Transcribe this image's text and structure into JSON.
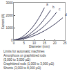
{
  "chart_data": {
    "type": "line",
    "x_label": "Diameter (mm)",
    "y_label": "Current (A)",
    "x": [
      0,
      3,
      6,
      9,
      12,
      15,
      18,
      21,
      24
    ],
    "series": [
      {
        "name": "a",
        "color": "#3a3a5a",
        "values": [
          0,
          150,
          500,
          1000,
          1700,
          2600,
          null,
          null,
          null
        ]
      },
      {
        "name": "b",
        "color": "#3a3a5a",
        "values": [
          0,
          100,
          300,
          650,
          1100,
          1700,
          2400,
          null,
          null
        ]
      },
      {
        "name": "c",
        "color": "#3a3a5a",
        "values": [
          0,
          80,
          220,
          450,
          750,
          1150,
          1650,
          2250,
          null
        ]
      },
      {
        "name": "d",
        "color": "#3a3a5a",
        "values": [
          0,
          50,
          150,
          300,
          500,
          750,
          1050,
          1400,
          1800
        ]
      }
    ],
    "xlim": [
      0,
      25
    ],
    "xticks": [
      0,
      5,
      10,
      15,
      20,
      25
    ],
    "ylim": [
      0,
      3000
    ],
    "yticks": [
      0,
      1000,
      2000,
      3000
    ],
    "grid": false,
    "annotations": [
      "Limits for automatic machines",
      "Amorphous or graphitized rods",
      "(5,000 to 3,000 µΩ)",
      "Graphitized rods (1,000 to 3,000 µΩ)",
      "Shunts (3,000 to 8,000 µΩ)"
    ]
  }
}
